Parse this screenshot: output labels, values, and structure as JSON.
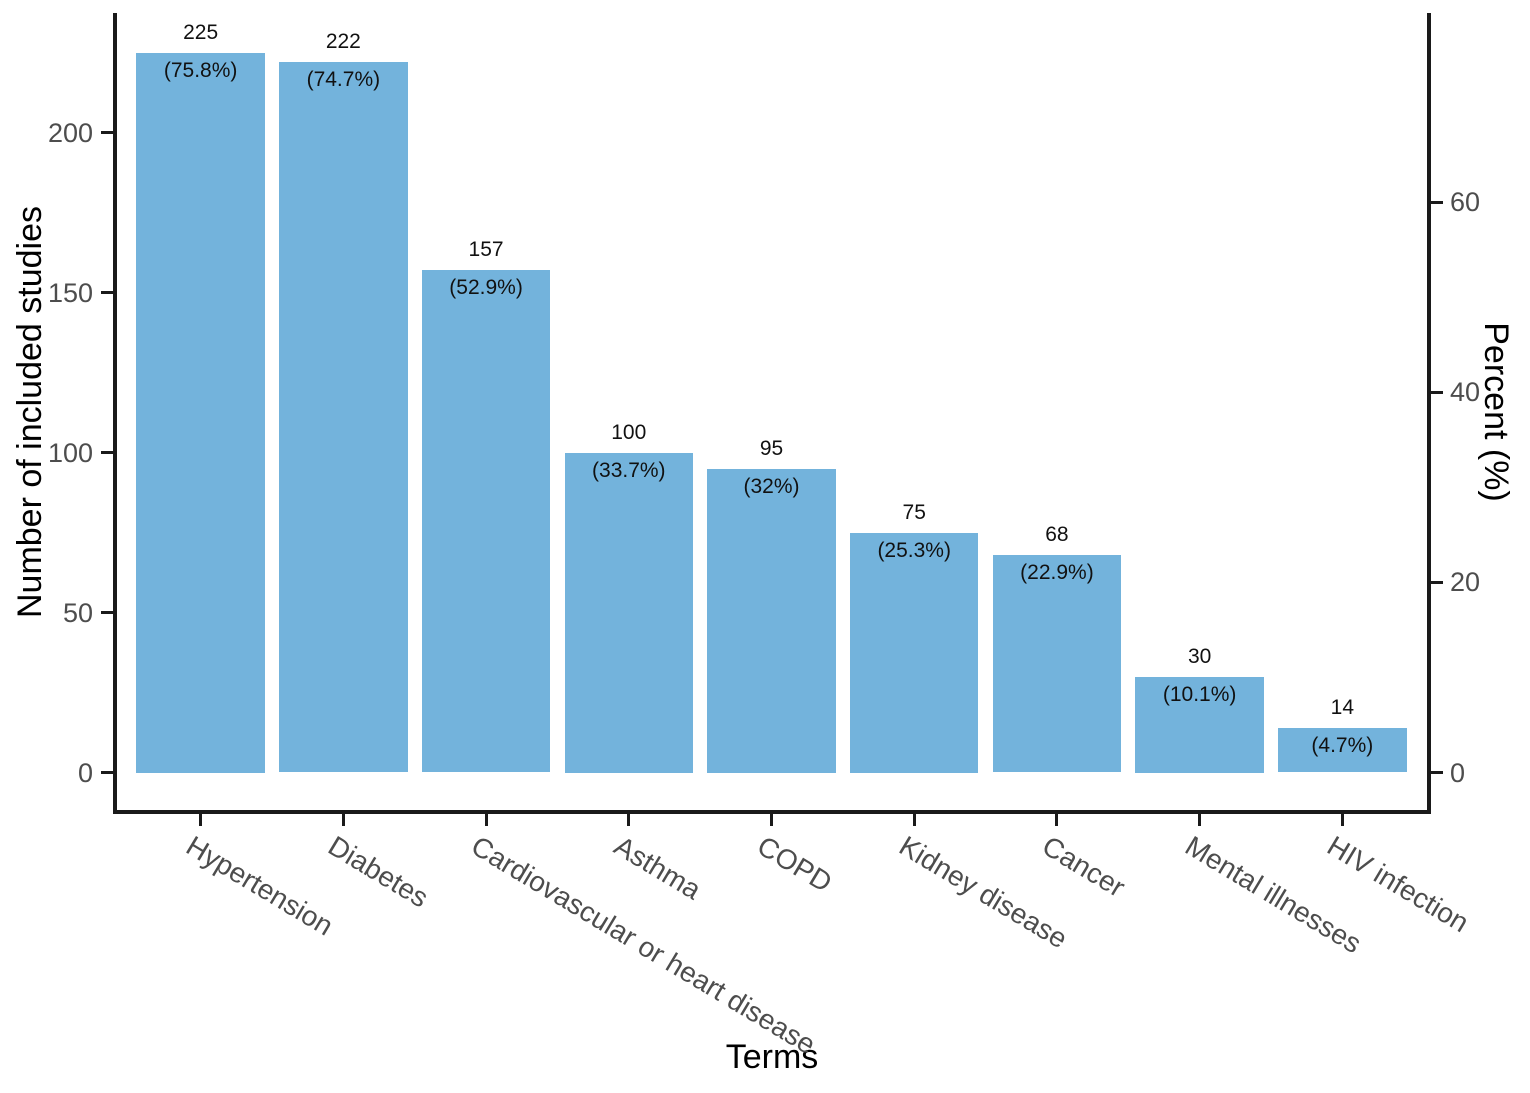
{
  "chart_data": {
    "type": "bar",
    "title": "",
    "xlabel": "Terms",
    "ylabel_left": "Number of included studies",
    "ylabel_right": "Percent (%)",
    "categories": [
      "Hypertension",
      "Diabetes",
      "Cardiovascular or heart disease",
      "Asthma",
      "COPD",
      "Kidney disease",
      "Cancer",
      "Mental illnesses",
      "HIV infection"
    ],
    "values": [
      225,
      222,
      157,
      100,
      95,
      75,
      68,
      30,
      14
    ],
    "percents": [
      75.8,
      74.7,
      52.9,
      33.7,
      32,
      25.3,
      22.9,
      10.1,
      4.7
    ],
    "percent_labels": [
      "(75.8%)",
      "(74.7%)",
      "(52.9%)",
      "(33.7%)",
      "(32%)",
      "(25.3%)",
      "(22.9%)",
      "(10.1%)",
      "(4.7%)"
    ],
    "left_axis_ticks": [
      0,
      50,
      100,
      150,
      200
    ],
    "right_axis_ticks": [
      0,
      20,
      40,
      60
    ],
    "ylim_left": [
      0,
      237
    ],
    "ylim_right": [
      0,
      79.8
    ],
    "bar_color": "#73b3dc",
    "tick_label_color": "#4d4d4d",
    "axis_color": "#1a1a1a",
    "grid": false,
    "legend_position": "none"
  }
}
